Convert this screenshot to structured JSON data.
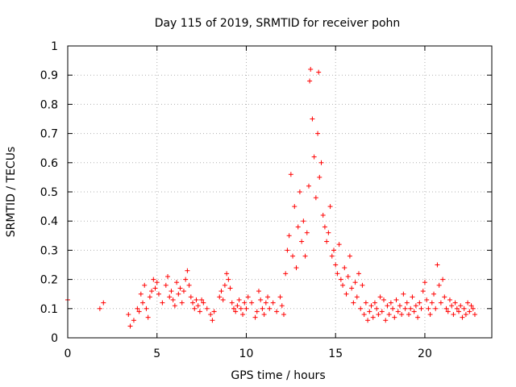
{
  "chart_data": {
    "type": "scatter",
    "title": "Day 115 of 2019, SRMTID for receiver pohn",
    "xlabel": "GPS time / hours",
    "ylabel": "SRMTID / TECUs",
    "xlim": [
      0,
      23.75
    ],
    "ylim": [
      0,
      1
    ],
    "xticks": [
      "0",
      "5",
      "10",
      "15",
      "20"
    ],
    "yticks": [
      "0",
      "0.1",
      "0.2",
      "0.3",
      "0.4",
      "0.5",
      "0.6",
      "0.7",
      "0.8",
      "0.9",
      "1"
    ],
    "grid": true,
    "marker": "+",
    "color": "#ff0000",
    "series": [
      {
        "name": "SRMTID",
        "x": [
          0.0,
          1.8,
          2.0,
          3.4,
          3.5,
          3.7,
          3.9,
          4.0,
          4.1,
          4.2,
          4.3,
          4.4,
          4.5,
          4.6,
          4.7,
          4.8,
          4.9,
          5.0,
          5.1,
          5.3,
          5.5,
          5.6,
          5.7,
          5.8,
          5.9,
          6.0,
          6.1,
          6.2,
          6.3,
          6.4,
          6.5,
          6.6,
          6.7,
          6.8,
          6.9,
          7.0,
          7.1,
          7.2,
          7.3,
          7.4,
          7.5,
          7.6,
          7.8,
          8.0,
          8.1,
          8.2,
          8.5,
          8.6,
          8.7,
          8.8,
          8.9,
          9.0,
          9.1,
          9.2,
          9.3,
          9.4,
          9.5,
          9.6,
          9.7,
          9.8,
          9.9,
          10.0,
          10.1,
          10.3,
          10.5,
          10.6,
          10.7,
          10.8,
          10.9,
          11.0,
          11.1,
          11.2,
          11.3,
          11.5,
          11.7,
          11.9,
          12.0,
          12.1,
          12.2,
          12.3,
          12.4,
          12.5,
          12.6,
          12.7,
          12.8,
          12.9,
          13.0,
          13.1,
          13.2,
          13.3,
          13.4,
          13.5,
          13.55,
          13.6,
          13.7,
          13.8,
          13.9,
          14.0,
          14.05,
          14.1,
          14.2,
          14.3,
          14.4,
          14.5,
          14.6,
          14.7,
          14.8,
          14.9,
          15.0,
          15.1,
          15.2,
          15.3,
          15.4,
          15.5,
          15.6,
          15.7,
          15.8,
          15.9,
          16.0,
          16.1,
          16.2,
          16.3,
          16.4,
          16.5,
          16.6,
          16.7,
          16.8,
          16.9,
          17.0,
          17.1,
          17.2,
          17.3,
          17.4,
          17.5,
          17.6,
          17.7,
          17.8,
          17.9,
          18.0,
          18.1,
          18.2,
          18.3,
          18.4,
          18.5,
          18.6,
          18.7,
          18.8,
          18.9,
          19.0,
          19.1,
          19.2,
          19.3,
          19.4,
          19.5,
          19.6,
          19.7,
          19.8,
          19.9,
          20.0,
          20.1,
          20.2,
          20.3,
          20.4,
          20.5,
          20.6,
          20.7,
          20.8,
          20.9,
          21.0,
          21.1,
          21.2,
          21.3,
          21.4,
          21.5,
          21.6,
          21.7,
          21.8,
          21.9,
          22.0,
          22.1,
          22.2,
          22.3,
          22.4,
          22.5,
          22.6,
          22.7,
          22.8
        ],
        "y": [
          0.13,
          0.1,
          0.12,
          0.08,
          0.04,
          0.06,
          0.1,
          0.09,
          0.15,
          0.12,
          0.18,
          0.1,
          0.07,
          0.14,
          0.16,
          0.2,
          0.17,
          0.19,
          0.15,
          0.12,
          0.18,
          0.21,
          0.14,
          0.16,
          0.13,
          0.11,
          0.19,
          0.15,
          0.17,
          0.12,
          0.16,
          0.2,
          0.23,
          0.18,
          0.14,
          0.12,
          0.1,
          0.13,
          0.11,
          0.09,
          0.13,
          0.12,
          0.1,
          0.08,
          0.06,
          0.09,
          0.14,
          0.16,
          0.13,
          0.18,
          0.22,
          0.2,
          0.17,
          0.12,
          0.1,
          0.09,
          0.11,
          0.13,
          0.1,
          0.08,
          0.12,
          0.1,
          0.14,
          0.12,
          0.07,
          0.09,
          0.16,
          0.13,
          0.1,
          0.08,
          0.12,
          0.14,
          0.1,
          0.12,
          0.09,
          0.14,
          0.11,
          0.08,
          0.22,
          0.3,
          0.35,
          0.56,
          0.28,
          0.45,
          0.24,
          0.38,
          0.5,
          0.33,
          0.4,
          0.28,
          0.36,
          0.52,
          0.88,
          0.92,
          0.75,
          0.62,
          0.48,
          0.7,
          0.91,
          0.55,
          0.6,
          0.42,
          0.38,
          0.33,
          0.36,
          0.45,
          0.28,
          0.3,
          0.25,
          0.22,
          0.32,
          0.2,
          0.18,
          0.24,
          0.15,
          0.21,
          0.28,
          0.17,
          0.12,
          0.19,
          0.14,
          0.22,
          0.1,
          0.18,
          0.08,
          0.12,
          0.06,
          0.09,
          0.11,
          0.07,
          0.12,
          0.1,
          0.08,
          0.14,
          0.09,
          0.13,
          0.06,
          0.11,
          0.08,
          0.12,
          0.1,
          0.07,
          0.13,
          0.09,
          0.11,
          0.08,
          0.15,
          0.1,
          0.12,
          0.08,
          0.1,
          0.14,
          0.09,
          0.11,
          0.07,
          0.12,
          0.1,
          0.16,
          0.19,
          0.13,
          0.1,
          0.08,
          0.12,
          0.15,
          0.1,
          0.25,
          0.18,
          0.12,
          0.2,
          0.14,
          0.1,
          0.09,
          0.13,
          0.11,
          0.08,
          0.12,
          0.1,
          0.09,
          0.11,
          0.07,
          0.1,
          0.08,
          0.12,
          0.09,
          0.11,
          0.1,
          0.08
        ]
      }
    ]
  }
}
